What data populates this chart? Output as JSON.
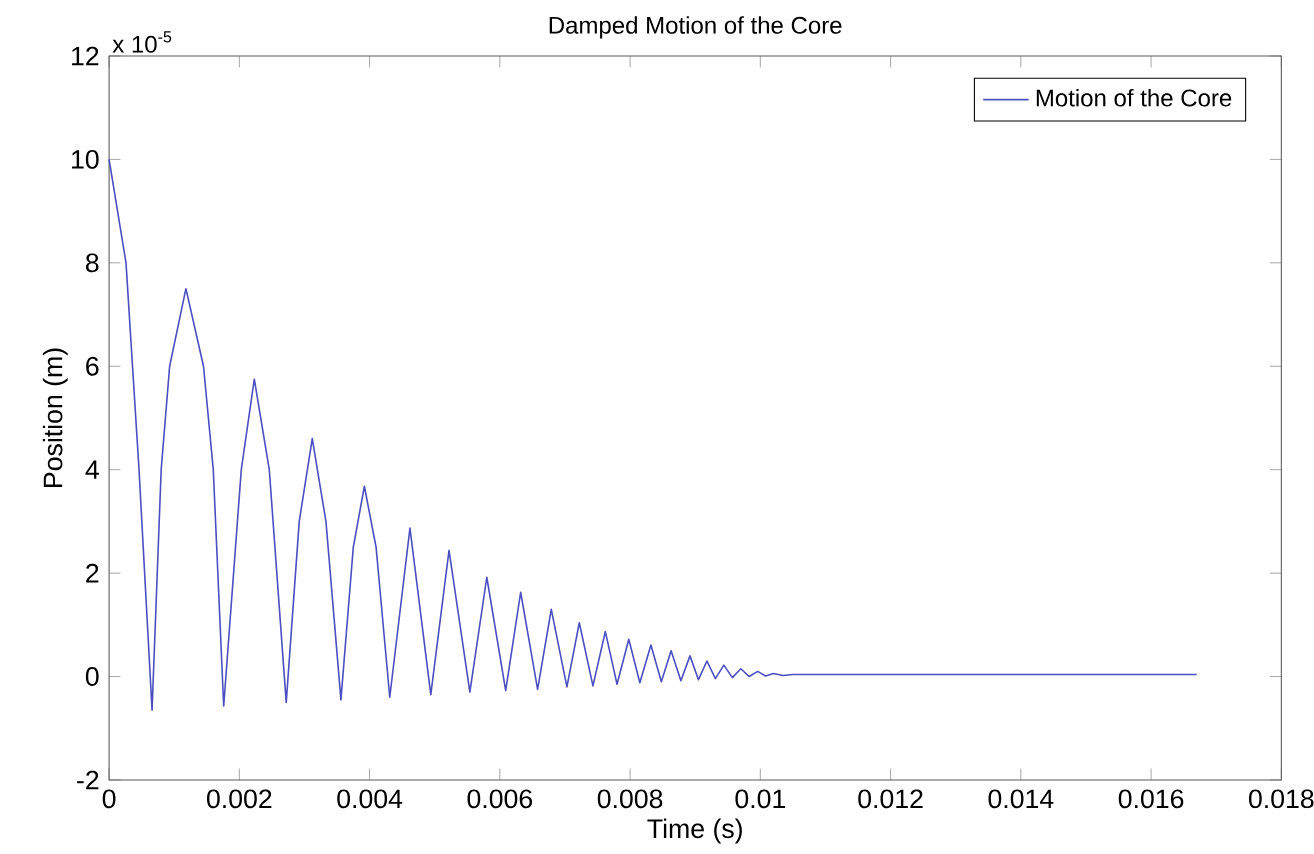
{
  "chart_data": {
    "type": "line",
    "title": "Damped Motion of the Core",
    "xlabel": "Time (s)",
    "ylabel": "Position (m)",
    "annotations": [
      "x 10$^{-5}$"
    ],
    "series": [
      {
        "name": "Motion of the Core",
        "color": "#4b4fc0",
        "x": [
          0,
          0.00026,
          0.00046,
          0.00066,
          0.0008,
          0.00093,
          0.00118,
          0.00145,
          0.0016,
          0.00176,
          0.00203,
          0.00223,
          0.00246,
          0.00272,
          0.00292,
          0.00312,
          0.00333,
          0.00356,
          0.00375,
          0.00392,
          0.0041,
          0.00431,
          0.00462,
          0.00494,
          0.00522,
          0.00554,
          0.0058,
          0.00609,
          0.00632,
          0.00658,
          0.00679,
          0.00703,
          0.00722,
          0.00743,
          0.00762,
          0.0078,
          0.00798,
          0.00815,
          0.00832,
          0.00848,
          0.00863,
          0.00878,
          0.00892,
          0.00905,
          0.00918,
          0.00931,
          0.00944,
          0.00957,
          0.0097,
          0.00983,
          0.00996,
          0.01008,
          0.0102,
          0.01035,
          0.0105,
          0.0167
        ],
        "values": [
          10,
          8,
          4,
          -0.65,
          4,
          6,
          7.5,
          6,
          4,
          -0.57,
          4,
          5.75,
          4,
          -0.5,
          3,
          4.6,
          3,
          -0.45,
          2.5,
          3.68,
          2.5,
          -0.4,
          2.87,
          -0.35,
          2.44,
          -0.3,
          1.92,
          -0.27,
          1.63,
          -0.25,
          1.3,
          -0.2,
          1.04,
          -0.18,
          0.87,
          -0.15,
          0.72,
          -0.12,
          0.61,
          -0.1,
          0.5,
          -0.08,
          0.4,
          -0.06,
          0.3,
          -0.04,
          0.22,
          -0.02,
          0.15,
          0,
          0.1,
          0.01,
          0.06,
          0.02,
          0.04,
          0.04
        ]
      }
    ],
    "xlim": [
      0,
      0.018
    ],
    "ylim": [
      -2,
      12
    ],
    "xticks": [
      0,
      0.002,
      0.004,
      0.006,
      0.008,
      0.01,
      0.012,
      0.014,
      0.016,
      0.018
    ],
    "yticks": [
      -2,
      0,
      2,
      4,
      6,
      8,
      10,
      12
    ],
    "grid": false,
    "legend": "top right",
    "marker": "none",
    "line_style": "solid"
  }
}
